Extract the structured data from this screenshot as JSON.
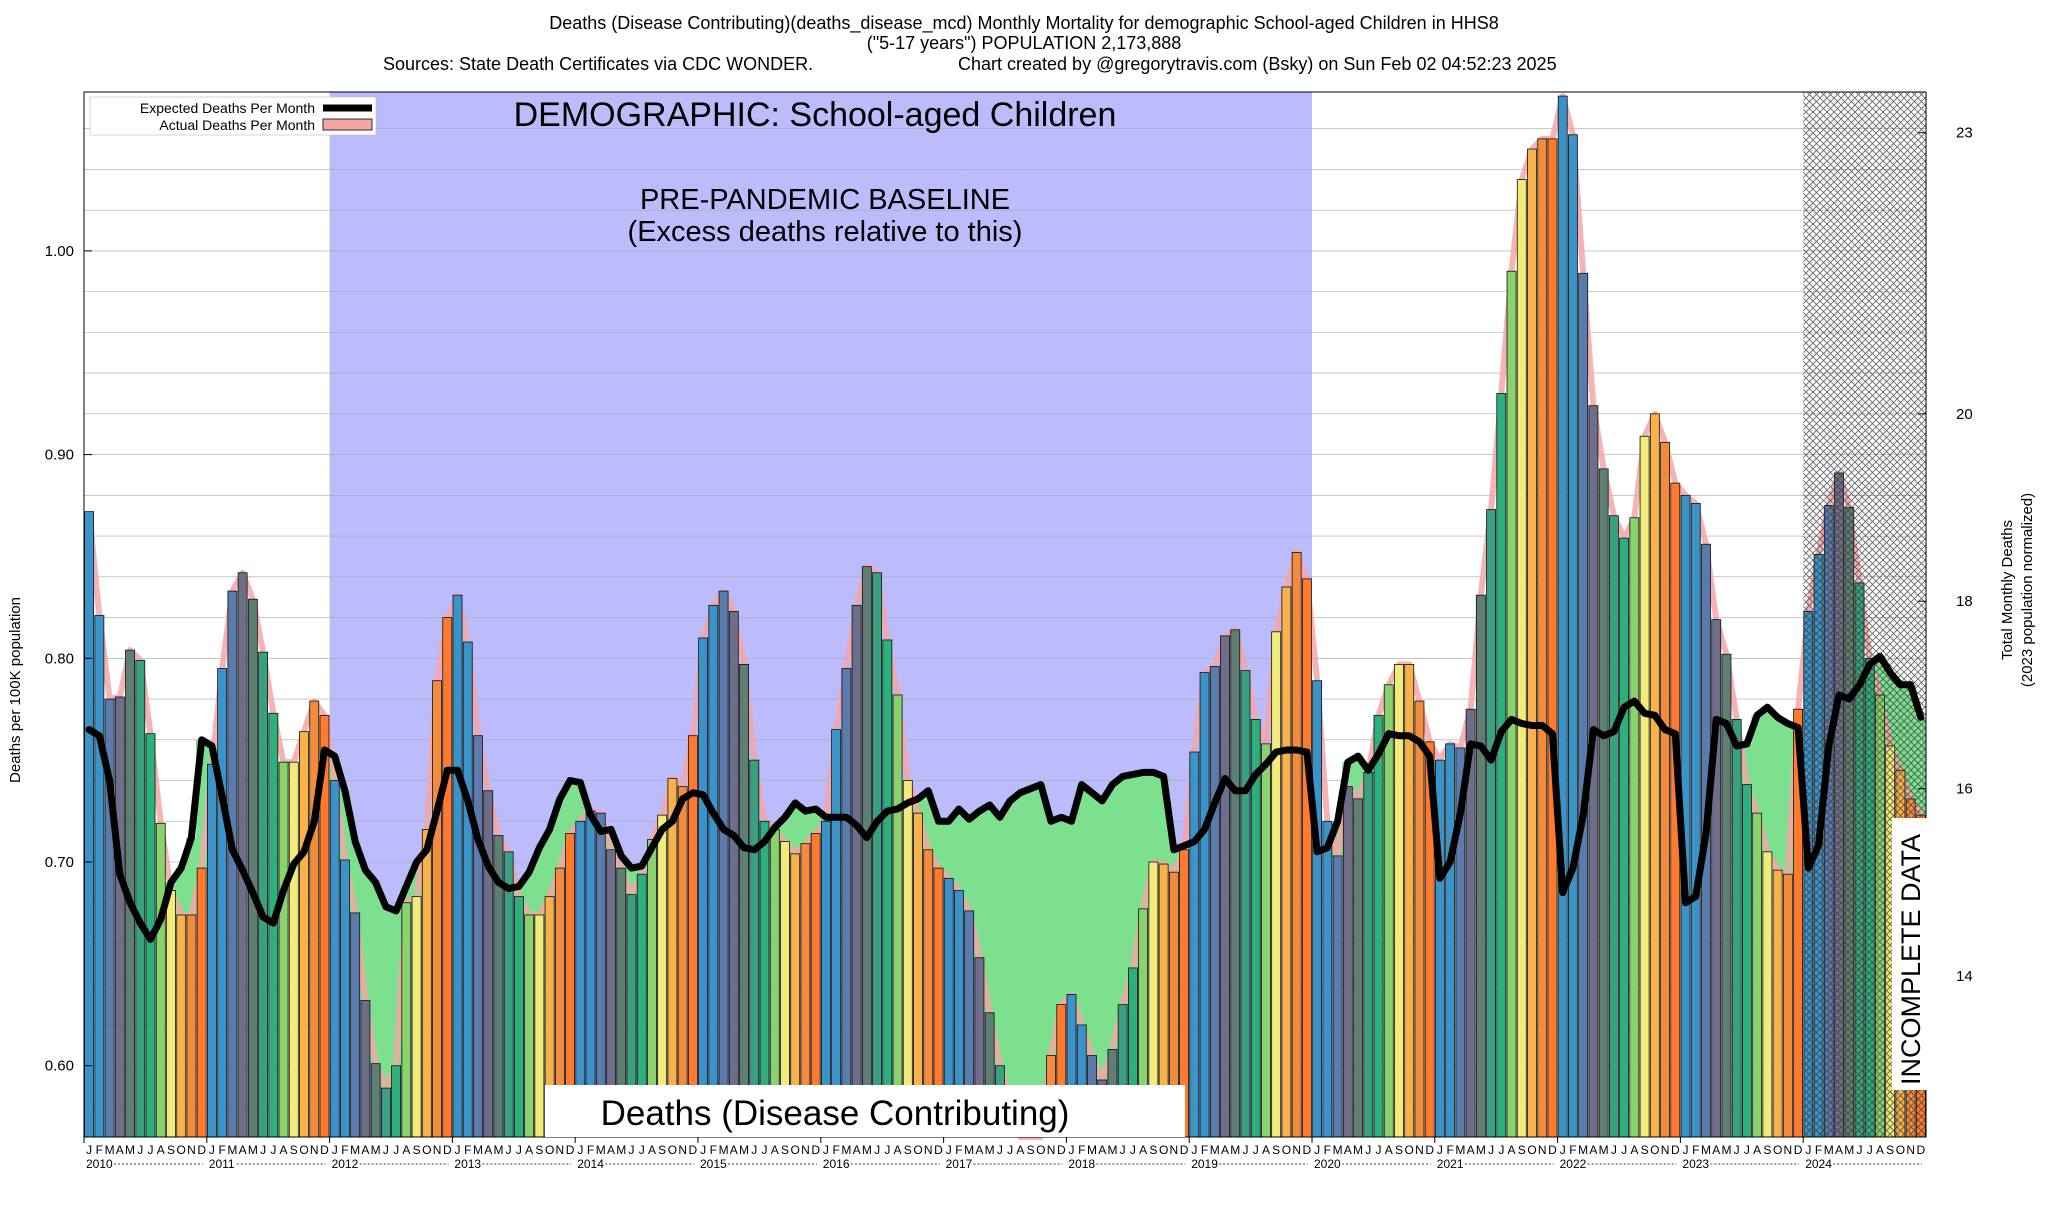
{
  "header": {
    "line1": "Deaths (Disease Contributing)(deaths_disease_mcd) Monthly Mortality for demographic School-aged Children in HHS8",
    "line2": "(\"5-17 years\") POPULATION 2,173,888",
    "line3_left": "Sources: State Death Certificates via CDC WONDER.",
    "line3_right": "Chart created by @gregorytravis.com (Bsky) on Sun Feb 02 04:52:23 2025"
  },
  "legend": {
    "expected": "Expected Deaths Per Month",
    "actual": "Actual Deaths Per Month"
  },
  "annotations": {
    "demographic": "DEMOGRAPHIC: School-aged Children",
    "baseline_1": "PRE-PANDEMIC BASELINE",
    "baseline_2": "(Excess deaths relative to this)",
    "bottom_title": "Deaths (Disease Contributing)",
    "incomplete": "INCOMPLETE DATA"
  },
  "colors": {
    "baseline_fill": "#bcbcfc",
    "excess_fill": "#7de08f",
    "actual_glow": "#f4a6a6",
    "expected_line": "#000000",
    "month_palette": [
      "#3b93c7",
      "#3b93c7",
      "#5a7bab",
      "#6e6e8a",
      "#5f7f72",
      "#3aa080",
      "#2db07c",
      "#8ad36c",
      "#f1ec7a",
      "#f7b24a",
      "#f28c3c",
      "#ff7a2c"
    ]
  },
  "chart_data": {
    "type": "bar",
    "ylabel": "Deaths per 100K population",
    "y2label_1": "Total Monthly Deaths",
    "y2label_2": "(2023 population normalized)",
    "ylim": [
      0.565,
      1.078
    ],
    "y_ticks": [
      0.6,
      0.7,
      0.8,
      0.9,
      1.0
    ],
    "y2_ticks": [
      14,
      16,
      18,
      20,
      23
    ],
    "start": "2010-01",
    "month_letters": [
      "J",
      "F",
      "M",
      "A",
      "M",
      "J",
      "J",
      "A",
      "S",
      "O",
      "N",
      "D"
    ],
    "years": [
      "2010",
      "2011",
      "2012",
      "2013",
      "2014",
      "2015",
      "2016",
      "2017",
      "2018",
      "2019",
      "2020",
      "2021",
      "2022",
      "2023",
      "2024"
    ],
    "baseline_period": [
      "2012-01",
      "2019-12"
    ],
    "incomplete_period": [
      "2024-01",
      "2024-12"
    ],
    "series": [
      {
        "name": "Actual Deaths Per Month",
        "values": [
          0.872,
          0.821,
          0.78,
          0.781,
          0.804,
          0.799,
          0.763,
          0.719,
          0.686,
          0.674,
          0.674,
          0.697,
          0.748,
          0.795,
          0.833,
          0.842,
          0.829,
          0.803,
          0.773,
          0.749,
          0.749,
          0.764,
          0.779,
          0.772,
          0.74,
          0.701,
          0.675,
          0.632,
          0.601,
          0.589,
          0.6,
          0.68,
          0.683,
          0.716,
          0.789,
          0.82,
          0.831,
          0.808,
          0.762,
          0.735,
          0.713,
          0.705,
          0.683,
          0.674,
          0.674,
          0.683,
          0.697,
          0.714,
          0.72,
          0.725,
          0.724,
          0.706,
          0.697,
          0.684,
          0.694,
          0.711,
          0.723,
          0.741,
          0.737,
          0.762,
          0.81,
          0.826,
          0.833,
          0.823,
          0.797,
          0.75,
          0.72,
          0.716,
          0.71,
          0.704,
          0.709,
          0.714,
          0.72,
          0.765,
          0.795,
          0.826,
          0.845,
          0.842,
          0.809,
          0.782,
          0.74,
          0.724,
          0.706,
          0.697,
          0.692,
          0.686,
          0.676,
          0.653,
          0.626,
          0.6,
          0.583,
          0.565,
          0.565,
          0.565,
          0.605,
          0.63,
          0.635,
          0.62,
          0.605,
          0.593,
          0.608,
          0.63,
          0.648,
          0.677,
          0.7,
          0.699,
          0.695,
          0.706,
          0.754,
          0.793,
          0.796,
          0.811,
          0.814,
          0.794,
          0.77,
          0.758,
          0.813,
          0.835,
          0.852,
          0.839,
          0.789,
          0.72,
          0.703,
          0.737,
          0.731,
          0.744,
          0.772,
          0.787,
          0.797,
          0.797,
          0.779,
          0.759,
          0.75,
          0.758,
          0.756,
          0.775,
          0.831,
          0.873,
          0.93,
          0.99,
          1.035,
          1.05,
          1.055,
          1.055,
          1.076,
          1.057,
          0.989,
          0.924,
          0.893,
          0.87,
          0.859,
          0.869,
          0.909,
          0.92,
          0.906,
          0.886,
          0.88,
          0.876,
          0.856,
          0.819,
          0.802,
          0.77,
          0.738,
          0.724,
          0.705,
          0.696,
          0.694,
          0.775,
          0.823,
          0.851,
          0.875,
          0.891,
          0.874,
          0.837,
          0.8,
          0.782,
          0.757,
          0.745,
          0.731,
          0.723
        ]
      },
      {
        "name": "Expected Deaths Per Month",
        "values": [
          0.765,
          0.762,
          0.74,
          0.694,
          0.68,
          0.67,
          0.662,
          0.672,
          0.69,
          0.697,
          0.712,
          0.76,
          0.757,
          0.732,
          0.706,
          0.696,
          0.685,
          0.673,
          0.67,
          0.686,
          0.699,
          0.705,
          0.72,
          0.755,
          0.752,
          0.735,
          0.71,
          0.696,
          0.69,
          0.678,
          0.676,
          0.688,
          0.7,
          0.706,
          0.725,
          0.745,
          0.745,
          0.73,
          0.711,
          0.698,
          0.69,
          0.687,
          0.688,
          0.695,
          0.707,
          0.716,
          0.731,
          0.74,
          0.739,
          0.723,
          0.715,
          0.716,
          0.703,
          0.697,
          0.698,
          0.707,
          0.716,
          0.72,
          0.731,
          0.734,
          0.733,
          0.724,
          0.716,
          0.713,
          0.707,
          0.706,
          0.71,
          0.717,
          0.722,
          0.729,
          0.725,
          0.726,
          0.722,
          0.722,
          0.722,
          0.718,
          0.712,
          0.72,
          0.725,
          0.726,
          0.729,
          0.731,
          0.735,
          0.72,
          0.72,
          0.726,
          0.721,
          0.725,
          0.728,
          0.722,
          0.73,
          0.734,
          0.736,
          0.738,
          0.72,
          0.722,
          0.72,
          0.738,
          0.734,
          0.73,
          0.738,
          0.742,
          0.743,
          0.744,
          0.744,
          0.742,
          0.706,
          0.708,
          0.71,
          0.716,
          0.729,
          0.741,
          0.735,
          0.735,
          0.743,
          0.748,
          0.754,
          0.755,
          0.755,
          0.754,
          0.705,
          0.707,
          0.72,
          0.749,
          0.752,
          0.745,
          0.753,
          0.763,
          0.762,
          0.762,
          0.759,
          0.752,
          0.692,
          0.7,
          0.724,
          0.758,
          0.757,
          0.75,
          0.764,
          0.77,
          0.768,
          0.767,
          0.767,
          0.763,
          0.685,
          0.697,
          0.723,
          0.765,
          0.762,
          0.764,
          0.776,
          0.779,
          0.773,
          0.772,
          0.765,
          0.763,
          0.68,
          0.683,
          0.714,
          0.77,
          0.768,
          0.757,
          0.758,
          0.772,
          0.776,
          0.771,
          0.768,
          0.766,
          0.697,
          0.708,
          0.757,
          0.782,
          0.78,
          0.787,
          0.797,
          0.801,
          0.793,
          0.787,
          0.787,
          0.771
        ]
      }
    ]
  }
}
